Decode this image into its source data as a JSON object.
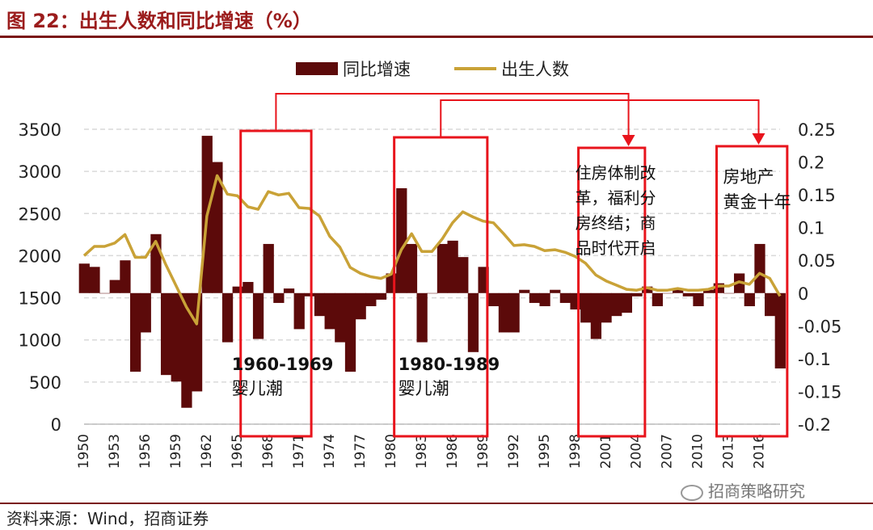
{
  "header": {
    "title": "图 22：出生人数和同比增速（%）"
  },
  "footer": {
    "source": "资料来源：Wind，招商证券"
  },
  "watermark": {
    "text": "招商策略研究",
    "icon": "wechat-icon"
  },
  "colors": {
    "bar": "#5c0a0a",
    "line": "#c9a237",
    "box": "#e8141c",
    "rule": "#7a1414",
    "grid": "#d9d9d9"
  },
  "chart_data": {
    "type": "bar+line",
    "legend": {
      "position": "top-center",
      "bar_label": "同比增速",
      "line_label": "出生人数"
    },
    "left_axis": {
      "min": 0,
      "max": 3500,
      "ticks": [
        "0",
        "500",
        "1000",
        "1500",
        "2000",
        "2500",
        "3000",
        "3500"
      ]
    },
    "right_axis": {
      "min": -0.2,
      "max": 0.25,
      "baseline": 0,
      "ticks": [
        "-0.2",
        "-0.15",
        "-0.1",
        "-0.05",
        "0",
        "0.05",
        "0.1",
        "0.15",
        "0.2",
        "0.25"
      ]
    },
    "x_ticks": [
      "1950",
      "1953",
      "1956",
      "1959",
      "1962",
      "1965",
      "1968",
      "1971",
      "1974",
      "1977",
      "1980",
      "1983",
      "1986",
      "1989",
      "1992",
      "1995",
      "1998",
      "2001",
      "2004",
      "2007",
      "2010",
      "2013",
      "2016"
    ],
    "years": [
      1950,
      1951,
      1952,
      1953,
      1954,
      1955,
      1956,
      1957,
      1958,
      1959,
      1960,
      1961,
      1962,
      1963,
      1964,
      1965,
      1966,
      1967,
      1968,
      1969,
      1970,
      1971,
      1972,
      1973,
      1974,
      1975,
      1976,
      1977,
      1978,
      1979,
      1980,
      1981,
      1982,
      1983,
      1984,
      1985,
      1986,
      1987,
      1988,
      1989,
      1990,
      1991,
      1992,
      1993,
      1994,
      1995,
      1996,
      1997,
      1998,
      1999,
      2000,
      2001,
      2002,
      2003,
      2004,
      2005,
      2006,
      2007,
      2008,
      2009,
      2010,
      2011,
      2012,
      2013,
      2014,
      2015,
      2016,
      2017,
      2018
    ],
    "series": [
      {
        "name": "出生人数",
        "axis": "left",
        "values": [
          2000,
          2110,
          2110,
          2150,
          2250,
          1980,
          1980,
          2170,
          1890,
          1640,
          1390,
          1190,
          2470,
          2950,
          2730,
          2710,
          2580,
          2550,
          2760,
          2720,
          2740,
          2570,
          2560,
          2470,
          2230,
          2100,
          1860,
          1790,
          1750,
          1730,
          1780,
          2070,
          2260,
          2050,
          2050,
          2200,
          2390,
          2520,
          2460,
          2410,
          2390,
          2260,
          2120,
          2130,
          2110,
          2060,
          2070,
          2040,
          1990,
          1910,
          1770,
          1700,
          1650,
          1600,
          1590,
          1620,
          1590,
          1590,
          1610,
          1590,
          1590,
          1600,
          1640,
          1640,
          1690,
          1660,
          1790,
          1730,
          1520
        ]
      },
      {
        "name": "同比增速",
        "axis": "right",
        "values": [
          0.045,
          0.04,
          0.0,
          0.02,
          0.05,
          -0.12,
          -0.06,
          0.09,
          -0.125,
          -0.135,
          -0.175,
          -0.15,
          0.24,
          0.2,
          -0.075,
          0.01,
          0.017,
          -0.07,
          0.075,
          -0.015,
          0.007,
          -0.055,
          -0.005,
          -0.035,
          -0.055,
          -0.075,
          -0.12,
          -0.04,
          -0.02,
          -0.01,
          0.03,
          0.16,
          0.075,
          -0.075,
          0.0,
          0.075,
          0.08,
          0.055,
          -0.09,
          0.04,
          -0.02,
          -0.06,
          -0.06,
          0.005,
          -0.015,
          -0.02,
          0.005,
          -0.015,
          -0.025,
          -0.045,
          -0.07,
          -0.045,
          -0.035,
          -0.03,
          -0.005,
          0.01,
          -0.02,
          0.0,
          0.005,
          -0.005,
          -0.02,
          0.005,
          0.015,
          0.0,
          0.03,
          -0.02,
          0.075,
          -0.035,
          -0.115
        ]
      }
    ],
    "annotations": [
      {
        "title": "1960-1969",
        "subtitle": "婴儿潮"
      },
      {
        "title": "1980-1989",
        "subtitle": "婴儿潮"
      },
      {
        "text": [
          "住房体制改",
          "革，福利分",
          "房终结；商",
          "品时代开启"
        ]
      },
      {
        "text": [
          "房地产",
          "黄金十年"
        ]
      }
    ]
  }
}
